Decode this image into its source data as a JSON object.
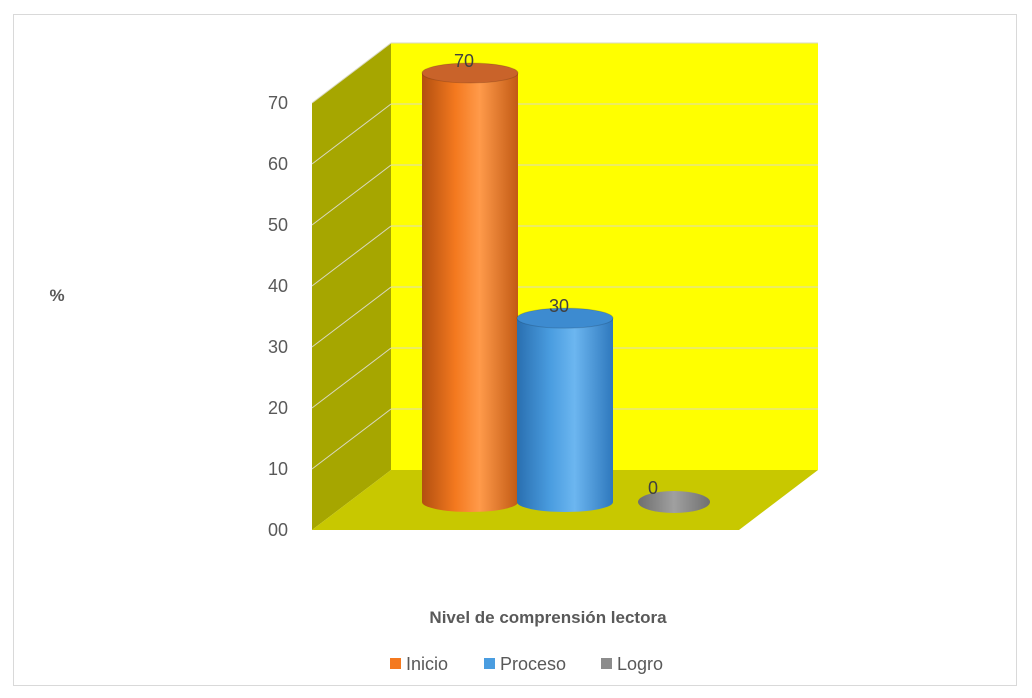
{
  "chart_data": {
    "type": "bar",
    "style": "3d-cylinder",
    "categories": [
      "Inicio",
      "Proceso",
      "Logro"
    ],
    "values": [
      70,
      30,
      0
    ],
    "data_labels": [
      "70",
      "30",
      "0"
    ],
    "ylabel": "%",
    "xlabel": "Nivel de comprensión lectora",
    "ylim": [
      0,
      70
    ],
    "yticks": [
      "00",
      "10",
      "20",
      "30",
      "40",
      "50",
      "60",
      "70"
    ],
    "grid": true,
    "legend": {
      "position": "bottom",
      "entries": [
        "Inicio",
        "Proceso",
        "Logro"
      ]
    },
    "colors": {
      "series": [
        "#f4791f",
        "#4a9de0",
        "#8c8c8c"
      ],
      "back_wall": "#ffff00",
      "side_wall": "#a6a600",
      "floor": "#c8c800"
    }
  }
}
